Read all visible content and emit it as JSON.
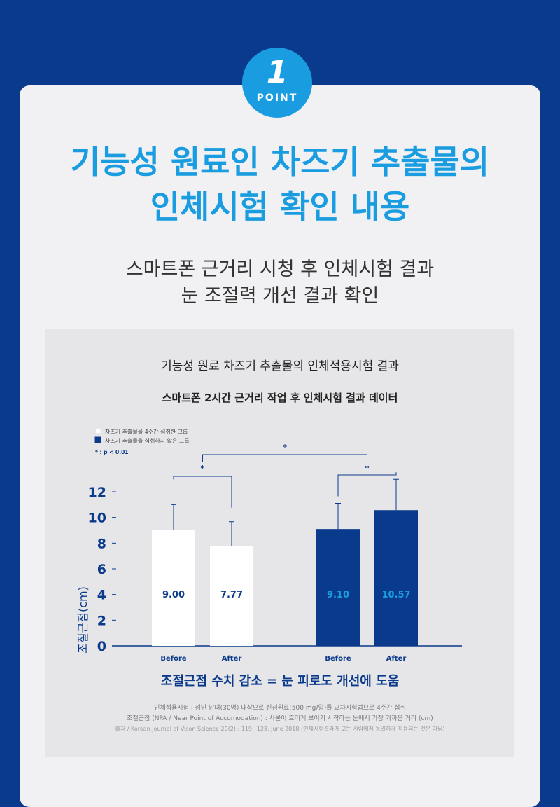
{
  "badge": {
    "number": "1",
    "label": "POINT"
  },
  "heading": {
    "line1": "기능성 원료인 차즈기 추출물의",
    "line2": "인체시험 확인 내용"
  },
  "subheading": {
    "line1": "스마트폰 근거리 시청 후 인체시험 결과",
    "line2": "눈 조절력 개선 결과 확인"
  },
  "panel": {
    "title": "기능성 원료 차즈기 추출물의 인체적용시험 결과",
    "subtitle": "스마트폰 2시간 근거리 작업 후 인체시험 결과 데이터"
  },
  "colors": {
    "accent": "#1a9de0",
    "navy": "#0a3a8c",
    "bar_white": "#ffffff",
    "bar_navy": "#0a3a8c"
  },
  "chart_data": {
    "type": "bar",
    "ylabel": "조절근점(cm)",
    "ylim": [
      0,
      12
    ],
    "yticks": [
      "12",
      "10",
      "8",
      "6",
      "4",
      "2",
      "0"
    ],
    "ytick_values": [
      12,
      10,
      8,
      6,
      4,
      2,
      0
    ],
    "legend": [
      {
        "label": "차즈기 추출물을 4주간 섭취한 그룹",
        "color": "#ffffff"
      },
      {
        "label": "차즈기 추출물을 섭취하지 않은 그룹",
        "color": "#0a3a8c"
      }
    ],
    "note": "* : p < 0.01",
    "bars": [
      {
        "group": "차즈기 추출물을 4주간 섭취한 그룹",
        "x": "Before",
        "value": 9.0,
        "label": "9.00",
        "error": 2.0
      },
      {
        "group": "차즈기 추출물을 4주간 섭취한 그룹",
        "x": "After",
        "value": 7.77,
        "label": "7.77",
        "error": 1.9
      },
      {
        "group": "차즈기 추출물을 섭취하지 않은 그룹",
        "x": "Before",
        "value": 9.1,
        "label": "9.10",
        "error": 2.0
      },
      {
        "group": "차즈기 추출물을 섭취하지 않은 그룹",
        "x": "After",
        "value": 10.57,
        "label": "10.57",
        "error": 2.4
      }
    ],
    "significance_marks": [
      "*",
      "*",
      "*"
    ],
    "caption": "조절근점 수치 감소 = 눈 피로도 개선에 도움"
  },
  "footnotes": {
    "line1": "인체적용시험 : 성인 남녀(30명) 대상으로 신청원료(500 mg/일)를 교차시험법으로 4주간 섭취",
    "line2": "조절근점 (NPA / Near Point of Accomodation) : 사물이 흐리게 보이기 시작하는 눈에서 가장 가까운 거리 (cm)",
    "line3": "출처 / Korean Journal of Vison Science 20(2) : 119~128, June 2018 (인체시험결과가 모든 사람에게 동일하게 적용되는 것은 아님)"
  }
}
